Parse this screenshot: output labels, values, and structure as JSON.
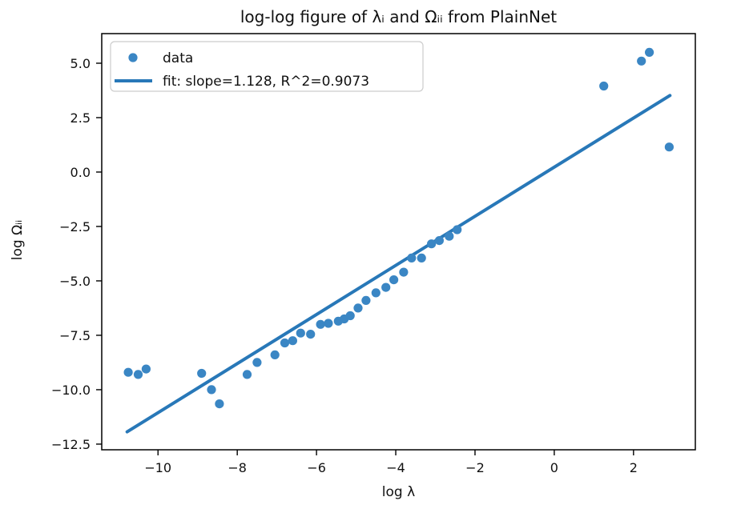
{
  "figure": {
    "background": "#ffffff",
    "axis_color": "#000000",
    "text_color": "#111111"
  },
  "chart_data": {
    "type": "scatter",
    "title": "log-log figure of λᵢ and Ωᵢᵢ from PlainNet",
    "xlabel": "log λ",
    "ylabel": "log Ωᵢᵢ",
    "xlim": [
      -11.42,
      3.56
    ],
    "ylim": [
      -12.76,
      6.36
    ],
    "grid": false,
    "legend_position": "upper left",
    "x_ticks": [
      -10,
      -8,
      -6,
      -4,
      -2,
      0,
      2
    ],
    "x_tick_labels": [
      "−10",
      "−8",
      "−6",
      "−4",
      "−2",
      "0",
      "2"
    ],
    "y_ticks": [
      5.0,
      2.5,
      0.0,
      -2.5,
      -5.0,
      -7.5,
      -10.0,
      -12.5
    ],
    "y_tick_labels": [
      "5.0",
      "2.5",
      "0.0",
      "−2.5",
      "−5.0",
      "−7.5",
      "−10.0",
      "−12.5"
    ],
    "series": [
      {
        "name": "data",
        "kind": "scatter",
        "color": "#3a86c4",
        "marker_radius": 5.6,
        "points": [
          [
            -10.75,
            -9.2
          ],
          [
            -10.5,
            -9.3
          ],
          [
            -10.3,
            -9.05
          ],
          [
            -8.9,
            -9.25
          ],
          [
            -8.65,
            -10.0
          ],
          [
            -8.45,
            -10.65
          ],
          [
            -7.75,
            -9.3
          ],
          [
            -7.5,
            -8.75
          ],
          [
            -7.05,
            -8.4
          ],
          [
            -6.8,
            -7.85
          ],
          [
            -6.6,
            -7.75
          ],
          [
            -6.4,
            -7.4
          ],
          [
            -6.15,
            -7.45
          ],
          [
            -5.9,
            -7.0
          ],
          [
            -5.7,
            -6.95
          ],
          [
            -5.45,
            -6.85
          ],
          [
            -5.3,
            -6.75
          ],
          [
            -5.15,
            -6.6
          ],
          [
            -4.95,
            -6.25
          ],
          [
            -4.75,
            -5.9
          ],
          [
            -4.5,
            -5.55
          ],
          [
            -4.25,
            -5.3
          ],
          [
            -4.05,
            -4.95
          ],
          [
            -3.8,
            -4.6
          ],
          [
            -3.6,
            -3.95
          ],
          [
            -3.35,
            -3.95
          ],
          [
            -3.1,
            -3.3
          ],
          [
            -2.9,
            -3.15
          ],
          [
            -2.65,
            -2.95
          ],
          [
            -2.45,
            -2.65
          ],
          [
            1.25,
            3.95
          ],
          [
            2.2,
            5.1
          ],
          [
            2.4,
            5.5
          ],
          [
            2.9,
            1.15
          ]
        ]
      },
      {
        "name": "fit: slope=1.128, R^2=0.9073",
        "kind": "line",
        "color": "#2878b8",
        "line_width": 4,
        "slope": 1.128,
        "intercept": 0.225,
        "r_squared": 0.9073,
        "x_range": [
          -10.78,
          2.92
        ]
      }
    ]
  },
  "legend": {
    "items": [
      {
        "label": "data"
      },
      {
        "label": "fit: slope=1.128, R^2=0.9073"
      }
    ]
  }
}
